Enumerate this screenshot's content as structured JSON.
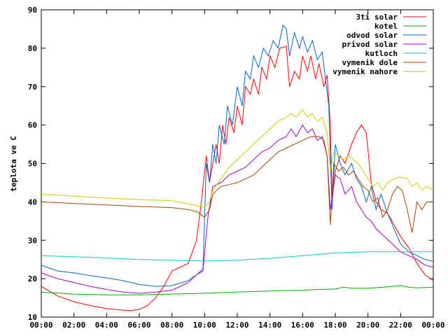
{
  "chart_data": {
    "type": "line",
    "title": "",
    "xlabel": "",
    "ylabel": "teplota ve C",
    "xlim": [
      0,
      24
    ],
    "ylim": [
      10,
      90
    ],
    "grid": false,
    "legend_position": "top-right",
    "x_ticks": [
      {
        "value": 0,
        "label": "00:00"
      },
      {
        "value": 2,
        "label": "02:00"
      },
      {
        "value": 4,
        "label": "04:00"
      },
      {
        "value": 6,
        "label": "06:00"
      },
      {
        "value": 8,
        "label": "08:00"
      },
      {
        "value": 10,
        "label": "10:00"
      },
      {
        "value": 12,
        "label": "12:00"
      },
      {
        "value": 14,
        "label": "14:00"
      },
      {
        "value": 16,
        "label": "16:00"
      },
      {
        "value": 18,
        "label": "18:00"
      },
      {
        "value": 20,
        "label": "20:00"
      },
      {
        "value": 22,
        "label": "22:00"
      },
      {
        "value": 24,
        "label": "00:00"
      }
    ],
    "y_ticks": [
      {
        "value": 10,
        "label": "10"
      },
      {
        "value": 20,
        "label": "20"
      },
      {
        "value": 30,
        "label": "30"
      },
      {
        "value": 40,
        "label": "40"
      },
      {
        "value": 50,
        "label": "50"
      },
      {
        "value": 60,
        "label": "60"
      },
      {
        "value": 70,
        "label": "70"
      },
      {
        "value": 80,
        "label": "80"
      },
      {
        "value": 90,
        "label": "90"
      }
    ],
    "series": [
      {
        "name": "3ti solar",
        "color": "#ff0000",
        "points": [
          [
            0,
            18
          ],
          [
            1,
            15.5
          ],
          [
            2,
            14
          ],
          [
            3,
            13
          ],
          [
            4,
            12.2
          ],
          [
            5,
            11.8
          ],
          [
            5.5,
            11.7
          ],
          [
            6,
            12
          ],
          [
            6.5,
            13
          ],
          [
            7,
            15
          ],
          [
            7.5,
            18
          ],
          [
            8,
            22
          ],
          [
            8.5,
            23
          ],
          [
            9,
            24
          ],
          [
            9.5,
            30
          ],
          [
            9.8,
            40
          ],
          [
            10,
            48
          ],
          [
            10.1,
            52
          ],
          [
            10.3,
            45
          ],
          [
            10.5,
            50
          ],
          [
            10.7,
            55
          ],
          [
            10.9,
            50
          ],
          [
            11.1,
            60
          ],
          [
            11.3,
            55
          ],
          [
            11.5,
            62
          ],
          [
            11.8,
            58
          ],
          [
            12,
            65
          ],
          [
            12.3,
            60
          ],
          [
            12.5,
            70
          ],
          [
            12.8,
            68
          ],
          [
            13,
            72
          ],
          [
            13.3,
            68
          ],
          [
            13.5,
            75
          ],
          [
            13.8,
            72
          ],
          [
            14,
            78
          ],
          [
            14.3,
            75
          ],
          [
            14.6,
            80
          ],
          [
            15,
            80.5
          ],
          [
            15.2,
            70
          ],
          [
            15.5,
            74
          ],
          [
            15.8,
            72
          ],
          [
            16,
            78
          ],
          [
            16.3,
            74
          ],
          [
            16.5,
            78
          ],
          [
            16.8,
            72
          ],
          [
            17,
            76
          ],
          [
            17.3,
            70
          ],
          [
            17.5,
            73
          ],
          [
            17.7,
            60
          ],
          [
            17.8,
            40
          ],
          [
            18,
            48
          ],
          [
            18.3,
            52
          ],
          [
            18.6,
            50
          ],
          [
            19,
            55
          ],
          [
            19.3,
            58
          ],
          [
            19.6,
            60
          ],
          [
            19.9,
            58
          ],
          [
            20.2,
            45
          ],
          [
            20.5,
            40
          ],
          [
            20.8,
            38
          ],
          [
            21.2,
            37
          ],
          [
            21.6,
            34
          ],
          [
            22,
            31
          ],
          [
            22.5,
            28
          ],
          [
            23,
            24
          ],
          [
            23.5,
            21
          ],
          [
            24,
            19.5
          ]
        ]
      },
      {
        "name": "kotel",
        "color": "#00aa00",
        "points": [
          [
            0,
            16.5
          ],
          [
            2,
            16
          ],
          [
            4,
            15.8
          ],
          [
            6,
            15.8
          ],
          [
            8,
            16
          ],
          [
            10,
            16.2
          ],
          [
            12,
            16.5
          ],
          [
            14,
            16.8
          ],
          [
            16,
            17
          ],
          [
            17,
            17.2
          ],
          [
            18,
            17.3
          ],
          [
            18.5,
            17.8
          ],
          [
            19,
            17.5
          ],
          [
            20,
            17.5
          ],
          [
            21,
            17.8
          ],
          [
            22,
            18.2
          ],
          [
            22.5,
            17.8
          ],
          [
            23,
            17.6
          ],
          [
            24,
            17.8
          ]
        ]
      },
      {
        "name": "odvod solar",
        "color": "#0066cc",
        "points": [
          [
            0,
            23.5
          ],
          [
            1,
            22
          ],
          [
            2,
            21.5
          ],
          [
            3,
            20.8
          ],
          [
            4,
            20.2
          ],
          [
            5,
            19.5
          ],
          [
            6,
            18.5
          ],
          [
            7,
            18
          ],
          [
            8,
            18.2
          ],
          [
            9,
            19.5
          ],
          [
            9.5,
            21
          ],
          [
            9.9,
            22.5
          ],
          [
            10.1,
            50
          ],
          [
            10.3,
            45
          ],
          [
            10.5,
            55
          ],
          [
            10.7,
            50
          ],
          [
            10.9,
            60
          ],
          [
            11.2,
            55
          ],
          [
            11.4,
            65
          ],
          [
            11.7,
            60
          ],
          [
            12,
            70
          ],
          [
            12.3,
            65
          ],
          [
            12.5,
            74
          ],
          [
            12.8,
            72
          ],
          [
            13,
            78
          ],
          [
            13.3,
            75
          ],
          [
            13.6,
            80
          ],
          [
            13.9,
            78
          ],
          [
            14.2,
            82
          ],
          [
            14.5,
            80
          ],
          [
            14.8,
            86
          ],
          [
            15,
            85
          ],
          [
            15.2,
            78
          ],
          [
            15.5,
            84
          ],
          [
            15.8,
            80
          ],
          [
            16,
            83
          ],
          [
            16.3,
            79
          ],
          [
            16.6,
            82
          ],
          [
            16.9,
            77
          ],
          [
            17.2,
            79
          ],
          [
            17.4,
            72
          ],
          [
            17.6,
            65
          ],
          [
            17.8,
            38
          ],
          [
            18,
            55
          ],
          [
            18.3,
            50
          ],
          [
            18.6,
            47
          ],
          [
            19,
            50
          ],
          [
            19.3,
            46
          ],
          [
            19.6,
            44
          ],
          [
            19.9,
            40
          ],
          [
            20.2,
            44
          ],
          [
            20.5,
            38
          ],
          [
            20.8,
            42
          ],
          [
            21.2,
            37
          ],
          [
            21.6,
            33
          ],
          [
            22,
            29
          ],
          [
            22.5,
            27
          ],
          [
            23,
            26
          ],
          [
            23.5,
            25
          ],
          [
            24,
            24.5
          ]
        ]
      },
      {
        "name": "privod solar",
        "color": "#aa00cc",
        "points": [
          [
            0,
            21.5
          ],
          [
            1,
            20
          ],
          [
            2,
            19
          ],
          [
            3,
            18
          ],
          [
            4,
            17.2
          ],
          [
            5,
            16.5
          ],
          [
            6,
            16.2
          ],
          [
            7,
            16.5
          ],
          [
            8,
            17
          ],
          [
            9,
            19
          ],
          [
            9.5,
            21
          ],
          [
            9.9,
            22
          ],
          [
            10.2,
            36
          ],
          [
            10.5,
            44
          ],
          [
            11,
            45
          ],
          [
            11.5,
            47
          ],
          [
            12,
            48
          ],
          [
            12.5,
            49
          ],
          [
            13,
            51
          ],
          [
            13.5,
            53
          ],
          [
            14,
            54
          ],
          [
            14.5,
            56
          ],
          [
            15,
            57
          ],
          [
            15.3,
            59
          ],
          [
            15.6,
            57
          ],
          [
            16,
            60
          ],
          [
            16.3,
            58
          ],
          [
            16.6,
            59
          ],
          [
            16.9,
            56
          ],
          [
            17.2,
            57
          ],
          [
            17.5,
            52
          ],
          [
            17.7,
            38
          ],
          [
            18,
            47
          ],
          [
            18.3,
            46
          ],
          [
            18.6,
            42
          ],
          [
            19,
            44
          ],
          [
            19.3,
            40
          ],
          [
            19.6,
            38
          ],
          [
            19.9,
            36
          ],
          [
            20.2,
            35
          ],
          [
            20.5,
            33
          ],
          [
            21,
            31
          ],
          [
            21.5,
            29
          ],
          [
            22,
            27
          ],
          [
            22.5,
            26
          ],
          [
            23,
            25
          ],
          [
            23.5,
            23.5
          ],
          [
            24,
            23
          ]
        ]
      },
      {
        "name": "kutloch",
        "color": "#00cccc",
        "points": [
          [
            0,
            26
          ],
          [
            2,
            25.7
          ],
          [
            4,
            25.4
          ],
          [
            6,
            25
          ],
          [
            8,
            24.8
          ],
          [
            10,
            24.6
          ],
          [
            12,
            24.8
          ],
          [
            14,
            25.3
          ],
          [
            16,
            26
          ],
          [
            18,
            26.7
          ],
          [
            20,
            27
          ],
          [
            22,
            27
          ],
          [
            24,
            27
          ]
        ]
      },
      {
        "name": "vymenik dole",
        "color": "#aa4400",
        "points": [
          [
            0,
            40
          ],
          [
            2,
            39.6
          ],
          [
            4,
            39.2
          ],
          [
            6,
            38.8
          ],
          [
            8,
            38.5
          ],
          [
            9,
            38
          ],
          [
            9.5,
            37.5
          ],
          [
            10,
            36
          ],
          [
            10.3,
            38
          ],
          [
            10.5,
            42
          ],
          [
            11,
            44
          ],
          [
            11.5,
            44.5
          ],
          [
            12,
            45
          ],
          [
            12.5,
            46
          ],
          [
            13,
            47
          ],
          [
            13.5,
            49
          ],
          [
            14,
            51
          ],
          [
            14.5,
            53
          ],
          [
            15,
            54
          ],
          [
            15.5,
            55
          ],
          [
            16,
            56
          ],
          [
            16.5,
            57
          ],
          [
            17,
            57
          ],
          [
            17.3,
            56
          ],
          [
            17.5,
            52
          ],
          [
            17.7,
            34
          ],
          [
            17.9,
            50
          ],
          [
            18.2,
            48
          ],
          [
            18.5,
            49
          ],
          [
            18.8,
            47
          ],
          [
            19.1,
            48
          ],
          [
            19.4,
            46
          ],
          [
            19.7,
            44
          ],
          [
            20,
            43
          ],
          [
            20.3,
            40
          ],
          [
            20.6,
            41
          ],
          [
            20.9,
            36
          ],
          [
            21.2,
            38
          ],
          [
            21.5,
            42
          ],
          [
            21.8,
            44
          ],
          [
            22.1,
            43
          ],
          [
            22.4,
            38
          ],
          [
            22.7,
            32
          ],
          [
            23,
            40
          ],
          [
            23.3,
            38
          ],
          [
            23.6,
            40
          ],
          [
            24,
            40
          ]
        ]
      },
      {
        "name": "vymenik nahore",
        "color": "#cccc00",
        "points": [
          [
            0,
            42
          ],
          [
            2,
            41.5
          ],
          [
            4,
            41
          ],
          [
            6,
            40.6
          ],
          [
            8,
            40.3
          ],
          [
            9,
            39.5
          ],
          [
            9.5,
            39
          ],
          [
            10,
            38.5
          ],
          [
            10.3,
            40
          ],
          [
            10.5,
            43
          ],
          [
            11,
            46
          ],
          [
            11.5,
            49
          ],
          [
            12,
            51
          ],
          [
            12.5,
            53
          ],
          [
            13,
            55
          ],
          [
            13.5,
            57
          ],
          [
            14,
            59
          ],
          [
            14.5,
            61
          ],
          [
            15,
            62
          ],
          [
            15.3,
            63
          ],
          [
            15.6,
            62
          ],
          [
            16,
            64
          ],
          [
            16.3,
            62
          ],
          [
            16.6,
            63
          ],
          [
            16.9,
            61
          ],
          [
            17.2,
            62
          ],
          [
            17.5,
            58
          ],
          [
            17.7,
            48
          ],
          [
            17.9,
            53
          ],
          [
            18.2,
            52
          ],
          [
            18.5,
            51
          ],
          [
            18.8,
            52
          ],
          [
            19.1,
            51
          ],
          [
            19.4,
            50
          ],
          [
            19.7,
            48
          ],
          [
            20,
            46
          ],
          [
            20.3,
            44
          ],
          [
            20.6,
            45
          ],
          [
            20.9,
            43
          ],
          [
            21.2,
            45
          ],
          [
            21.6,
            46
          ],
          [
            22,
            46.5
          ],
          [
            22.4,
            46
          ],
          [
            22.7,
            44
          ],
          [
            23,
            45
          ],
          [
            23.3,
            43
          ],
          [
            23.6,
            44
          ],
          [
            24,
            43
          ]
        ]
      }
    ]
  }
}
